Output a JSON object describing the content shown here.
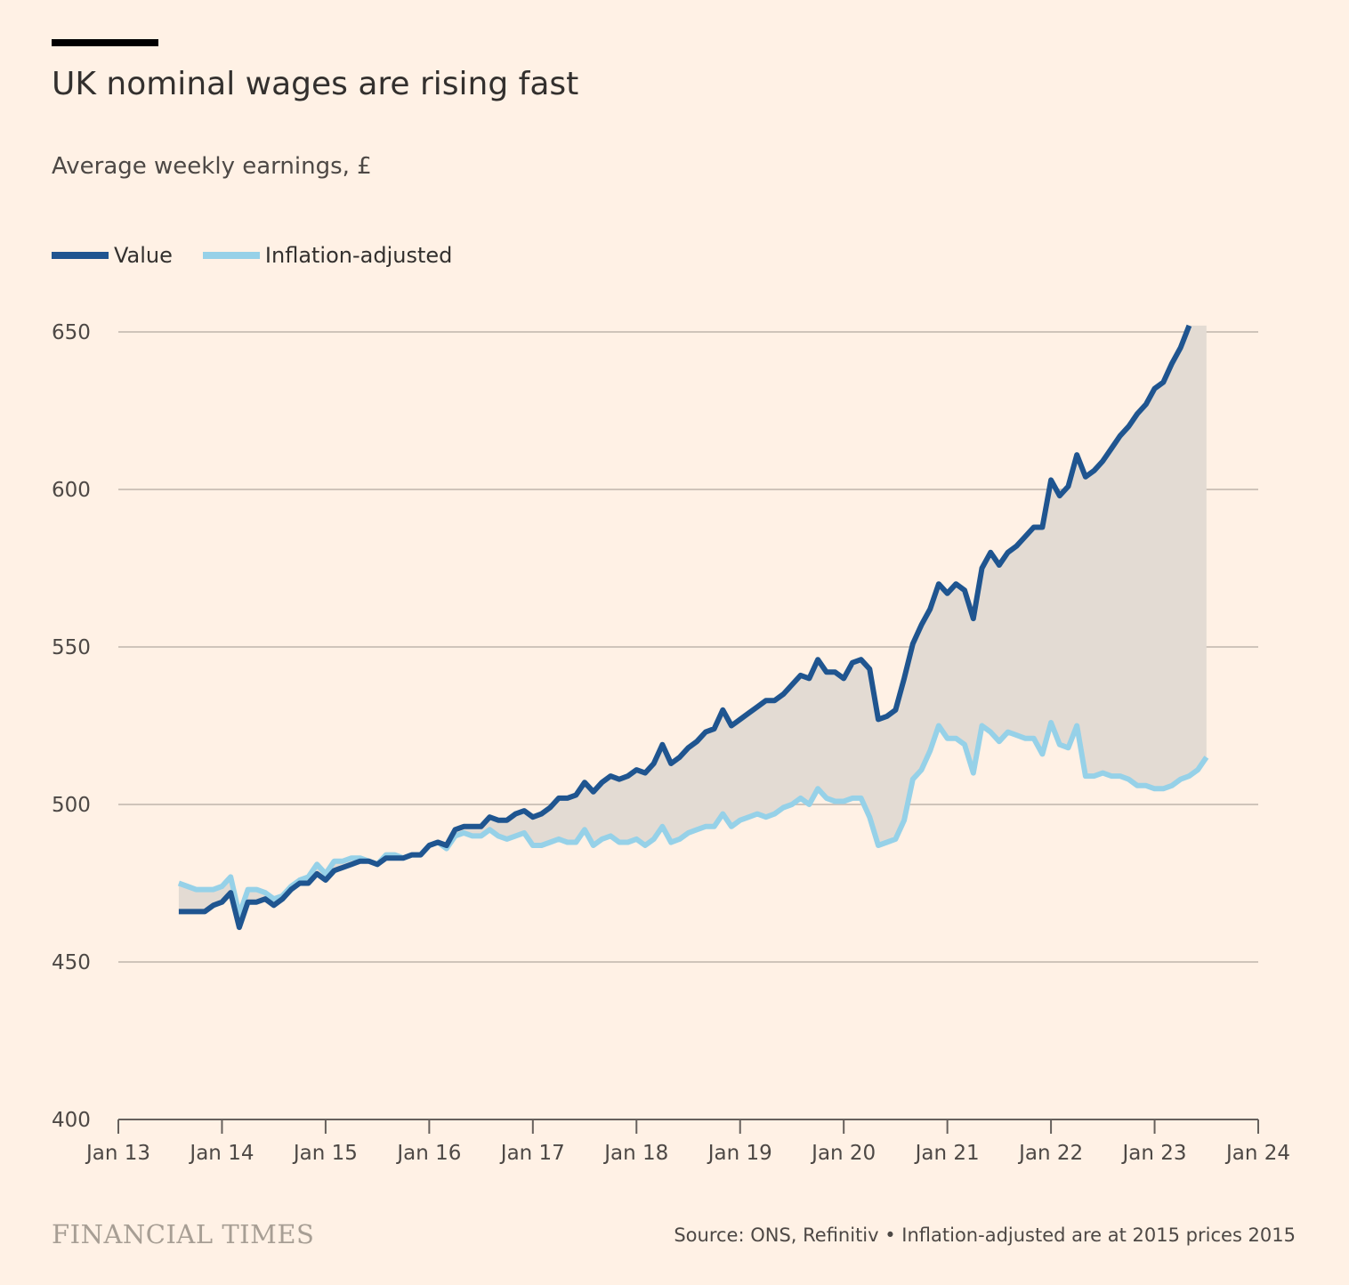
{
  "title": "UK nominal wages are rising fast",
  "subtitle": "Average weekly earnings, £",
  "legend": {
    "value_label": "Value",
    "adjusted_label": "Inflation-adjusted"
  },
  "colors": {
    "value": "#1f5590",
    "adjusted": "#96d1e8",
    "fill": "#e3dbd3",
    "grid": "#cfc4ba",
    "axis": "#66605c",
    "background": "#fff1e5"
  },
  "footer": {
    "logo": "FINANCIAL TIMES",
    "source": "Source: ONS, Refinitiv • Inflation-adjusted are at 2015 prices 2015"
  },
  "chart_data": {
    "type": "line",
    "title": "UK nominal wages are rising fast",
    "subtitle": "Average weekly earnings, £",
    "ylim": [
      400,
      655
    ],
    "yticks": [
      400,
      450,
      500,
      550,
      600,
      650
    ],
    "xlim": [
      "2013-01",
      "2024-01"
    ],
    "xticks": [
      "Jan 13",
      "Jan 14",
      "Jan 15",
      "Jan 16",
      "Jan 17",
      "Jan 18",
      "Jan 19",
      "Jan 20",
      "Jan 21",
      "Jan 22",
      "Jan 23",
      "Jan 24"
    ],
    "grid": true,
    "legend_position": "top-left",
    "area_between_series": true,
    "series": [
      {
        "name": "Value",
        "points": [
          [
            "2013-08",
            466
          ],
          [
            "2013-09",
            466
          ],
          [
            "2013-10",
            466
          ],
          [
            "2013-11",
            466
          ],
          [
            "2013-12",
            468
          ],
          [
            "2014-01",
            469
          ],
          [
            "2014-02",
            472
          ],
          [
            "2014-03",
            461
          ],
          [
            "2014-04",
            469
          ],
          [
            "2014-05",
            469
          ],
          [
            "2014-06",
            470
          ],
          [
            "2014-07",
            468
          ],
          [
            "2014-08",
            470
          ],
          [
            "2014-09",
            473
          ],
          [
            "2014-10",
            475
          ],
          [
            "2014-11",
            475
          ],
          [
            "2014-12",
            478
          ],
          [
            "2015-01",
            476
          ],
          [
            "2015-02",
            479
          ],
          [
            "2015-03",
            480
          ],
          [
            "2015-04",
            481
          ],
          [
            "2015-05",
            482
          ],
          [
            "2015-06",
            482
          ],
          [
            "2015-07",
            481
          ],
          [
            "2015-08",
            483
          ],
          [
            "2015-09",
            483
          ],
          [
            "2015-10",
            483
          ],
          [
            "2015-11",
            484
          ],
          [
            "2015-12",
            484
          ],
          [
            "2016-01",
            487
          ],
          [
            "2016-02",
            488
          ],
          [
            "2016-03",
            487
          ],
          [
            "2016-04",
            492
          ],
          [
            "2016-05",
            493
          ],
          [
            "2016-06",
            493
          ],
          [
            "2016-07",
            493
          ],
          [
            "2016-08",
            496
          ],
          [
            "2016-09",
            495
          ],
          [
            "2016-10",
            495
          ],
          [
            "2016-11",
            497
          ],
          [
            "2016-12",
            498
          ],
          [
            "2017-01",
            496
          ],
          [
            "2017-02",
            497
          ],
          [
            "2017-03",
            499
          ],
          [
            "2017-04",
            502
          ],
          [
            "2017-05",
            502
          ],
          [
            "2017-06",
            503
          ],
          [
            "2017-07",
            507
          ],
          [
            "2017-08",
            504
          ],
          [
            "2017-09",
            507
          ],
          [
            "2017-10",
            509
          ],
          [
            "2017-11",
            508
          ],
          [
            "2017-12",
            509
          ],
          [
            "2018-01",
            511
          ],
          [
            "2018-02",
            510
          ],
          [
            "2018-03",
            513
          ],
          [
            "2018-04",
            519
          ],
          [
            "2018-05",
            513
          ],
          [
            "2018-06",
            515
          ],
          [
            "2018-07",
            518
          ],
          [
            "2018-08",
            520
          ],
          [
            "2018-09",
            523
          ],
          [
            "2018-10",
            524
          ],
          [
            "2018-11",
            530
          ],
          [
            "2018-12",
            525
          ],
          [
            "2019-01",
            527
          ],
          [
            "2019-02",
            529
          ],
          [
            "2019-03",
            531
          ],
          [
            "2019-04",
            533
          ],
          [
            "2019-05",
            533
          ],
          [
            "2019-06",
            535
          ],
          [
            "2019-07",
            538
          ],
          [
            "2019-08",
            541
          ],
          [
            "2019-09",
            540
          ],
          [
            "2019-10",
            546
          ],
          [
            "2019-11",
            542
          ],
          [
            "2019-12",
            542
          ],
          [
            "2020-01",
            540
          ],
          [
            "2020-02",
            545
          ],
          [
            "2020-03",
            546
          ],
          [
            "2020-04",
            543
          ],
          [
            "2020-05",
            527
          ],
          [
            "2020-06",
            528
          ],
          [
            "2020-07",
            530
          ],
          [
            "2020-08",
            540
          ],
          [
            "2020-09",
            551
          ],
          [
            "2020-10",
            557
          ],
          [
            "2020-11",
            562
          ],
          [
            "2020-12",
            570
          ],
          [
            "2021-01",
            567
          ],
          [
            "2021-02",
            570
          ],
          [
            "2021-03",
            568
          ],
          [
            "2021-04",
            559
          ],
          [
            "2021-05",
            575
          ],
          [
            "2021-06",
            580
          ],
          [
            "2021-07",
            576
          ],
          [
            "2021-08",
            580
          ],
          [
            "2021-09",
            582
          ],
          [
            "2021-10",
            585
          ],
          [
            "2021-11",
            588
          ],
          [
            "2021-12",
            588
          ],
          [
            "2022-01",
            603
          ],
          [
            "2022-02",
            598
          ],
          [
            "2022-03",
            601
          ],
          [
            "2022-04",
            611
          ],
          [
            "2022-05",
            604
          ],
          [
            "2022-06",
            606
          ],
          [
            "2022-07",
            609
          ],
          [
            "2022-08",
            613
          ],
          [
            "2022-09",
            617
          ],
          [
            "2022-10",
            620
          ],
          [
            "2022-11",
            624
          ],
          [
            "2022-12",
            627
          ],
          [
            "2023-01",
            632
          ],
          [
            "2023-02",
            634
          ],
          [
            "2023-03",
            640
          ],
          [
            "2023-04",
            645
          ],
          [
            "2023-05",
            652
          ]
        ]
      },
      {
        "name": "Inflation-adjusted",
        "points": [
          [
            "2013-08",
            475
          ],
          [
            "2013-09",
            474
          ],
          [
            "2013-10",
            473
          ],
          [
            "2013-11",
            473
          ],
          [
            "2013-12",
            473
          ],
          [
            "2014-01",
            474
          ],
          [
            "2014-02",
            477
          ],
          [
            "2014-03",
            465
          ],
          [
            "2014-04",
            473
          ],
          [
            "2014-05",
            473
          ],
          [
            "2014-06",
            472
          ],
          [
            "2014-07",
            470
          ],
          [
            "2014-08",
            471
          ],
          [
            "2014-09",
            474
          ],
          [
            "2014-10",
            476
          ],
          [
            "2014-11",
            477
          ],
          [
            "2014-12",
            481
          ],
          [
            "2015-01",
            478
          ],
          [
            "2015-02",
            482
          ],
          [
            "2015-03",
            482
          ],
          [
            "2015-04",
            483
          ],
          [
            "2015-05",
            483
          ],
          [
            "2015-06",
            482
          ],
          [
            "2015-07",
            481
          ],
          [
            "2015-08",
            484
          ],
          [
            "2015-09",
            484
          ],
          [
            "2015-10",
            483
          ],
          [
            "2015-11",
            484
          ],
          [
            "2015-12",
            484
          ],
          [
            "2016-01",
            487
          ],
          [
            "2016-02",
            488
          ],
          [
            "2016-03",
            486
          ],
          [
            "2016-04",
            490
          ],
          [
            "2016-05",
            491
          ],
          [
            "2016-06",
            490
          ],
          [
            "2016-07",
            490
          ],
          [
            "2016-08",
            492
          ],
          [
            "2016-09",
            490
          ],
          [
            "2016-10",
            489
          ],
          [
            "2016-11",
            490
          ],
          [
            "2016-12",
            491
          ],
          [
            "2017-01",
            487
          ],
          [
            "2017-02",
            487
          ],
          [
            "2017-03",
            488
          ],
          [
            "2017-04",
            489
          ],
          [
            "2017-05",
            488
          ],
          [
            "2017-06",
            488
          ],
          [
            "2017-07",
            492
          ],
          [
            "2017-08",
            487
          ],
          [
            "2017-09",
            489
          ],
          [
            "2017-10",
            490
          ],
          [
            "2017-11",
            488
          ],
          [
            "2017-12",
            488
          ],
          [
            "2018-01",
            489
          ],
          [
            "2018-02",
            487
          ],
          [
            "2018-03",
            489
          ],
          [
            "2018-04",
            493
          ],
          [
            "2018-05",
            488
          ],
          [
            "2018-06",
            489
          ],
          [
            "2018-07",
            491
          ],
          [
            "2018-08",
            492
          ],
          [
            "2018-09",
            493
          ],
          [
            "2018-10",
            493
          ],
          [
            "2018-11",
            497
          ],
          [
            "2018-12",
            493
          ],
          [
            "2019-01",
            495
          ],
          [
            "2019-02",
            496
          ],
          [
            "2019-03",
            497
          ],
          [
            "2019-04",
            496
          ],
          [
            "2019-05",
            497
          ],
          [
            "2019-06",
            499
          ],
          [
            "2019-07",
            500
          ],
          [
            "2019-08",
            502
          ],
          [
            "2019-09",
            500
          ],
          [
            "2019-10",
            505
          ],
          [
            "2019-11",
            502
          ],
          [
            "2019-12",
            501
          ],
          [
            "2020-01",
            501
          ],
          [
            "2020-02",
            502
          ],
          [
            "2020-03",
            502
          ],
          [
            "2020-04",
            496
          ],
          [
            "2020-05",
            487
          ],
          [
            "2020-06",
            488
          ],
          [
            "2020-07",
            489
          ],
          [
            "2020-08",
            495
          ],
          [
            "2020-09",
            508
          ],
          [
            "2020-10",
            511
          ],
          [
            "2020-11",
            517
          ],
          [
            "2020-12",
            525
          ],
          [
            "2021-01",
            521
          ],
          [
            "2021-02",
            521
          ],
          [
            "2021-03",
            519
          ],
          [
            "2021-04",
            510
          ],
          [
            "2021-05",
            525
          ],
          [
            "2021-06",
            523
          ],
          [
            "2021-07",
            520
          ],
          [
            "2021-08",
            523
          ],
          [
            "2021-09",
            522
          ],
          [
            "2021-10",
            521
          ],
          [
            "2021-11",
            521
          ],
          [
            "2021-12",
            516
          ],
          [
            "2022-01",
            526
          ],
          [
            "2022-02",
            519
          ],
          [
            "2022-03",
            518
          ],
          [
            "2022-04",
            525
          ],
          [
            "2022-05",
            509
          ],
          [
            "2022-06",
            509
          ],
          [
            "2022-07",
            510
          ],
          [
            "2022-08",
            509
          ],
          [
            "2022-09",
            509
          ],
          [
            "2022-10",
            508
          ],
          [
            "2022-11",
            506
          ],
          [
            "2022-12",
            506
          ],
          [
            "2023-01",
            505
          ],
          [
            "2023-02",
            505
          ],
          [
            "2023-03",
            506
          ],
          [
            "2023-04",
            508
          ],
          [
            "2023-05",
            509
          ],
          [
            "2023-06",
            511
          ],
          [
            "2023-07",
            515
          ]
        ]
      }
    ]
  }
}
